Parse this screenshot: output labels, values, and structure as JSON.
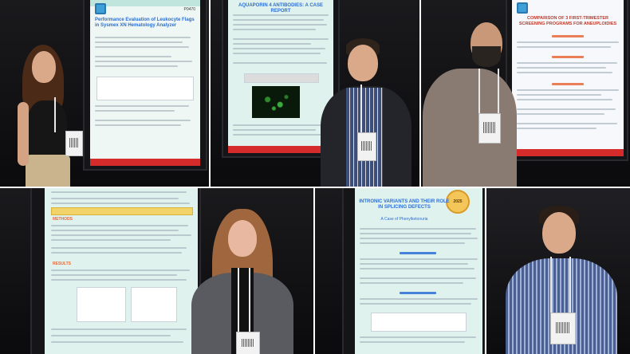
{
  "photos": [
    {
      "poster_title": "Performance Evaluation of Leukocyte Flags in Sysmex XN Hematology Analyzer",
      "poster_code": "P0470"
    },
    {
      "poster_title": "AQUAPORIN 4 ANTIBODIES: A CASE REPORT"
    },
    {
      "poster_title": "COMPARISON OF 3 FIRST-TRIMESTER SCREENING PROGRAMS FOR ANEUPLOIDIES"
    },
    {
      "poster_title": "",
      "poster_sections": [
        "METHODS",
        "RESULTS"
      ]
    },
    {
      "poster_title": "INTRONIC VARIANTS AND THEIR ROLE IN SPLICING DEFECTS",
      "poster_subtitle": "A Case of Phenylketonuria",
      "logo_text": "2025"
    },
    {
      "poster_title": ""
    }
  ],
  "colors": {
    "poster_title_blue": "#2c6fd6",
    "poster_footer_red": "#d52b2b",
    "poster_mint": "#dff2ee",
    "background_dark": "#0e0e10"
  }
}
